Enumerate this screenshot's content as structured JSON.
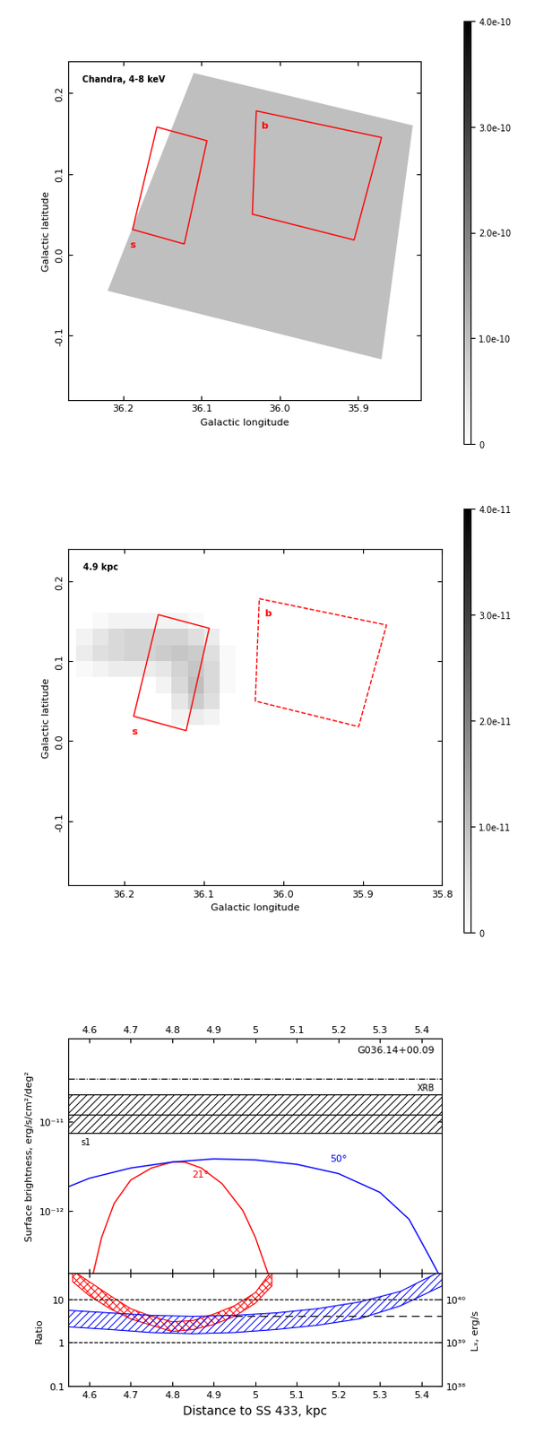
{
  "chart_data": [
    {
      "type": "image",
      "annotation": "Chandra, 4-8 keV",
      "xlabel": "Galactic longitude",
      "ylabel": "Galactic latitude",
      "xlim": [
        36.27,
        35.82
      ],
      "ylim": [
        -0.18,
        0.24
      ],
      "xticks": [
        36.2,
        36.1,
        {
          "value": 36.0,
          "label": "36.0"
        },
        35.9
      ],
      "yticks": [
        -0.1,
        {
          "value": 0,
          "label": "0.0"
        },
        0.1,
        0.2
      ],
      "footprint": {
        "corners": [
          [
            36.11,
            0.225
          ],
          [
            35.83,
            0.16
          ],
          [
            35.87,
            -0.13
          ],
          [
            36.22,
            -0.045
          ]
        ],
        "value": 1e-10
      },
      "regions": [
        {
          "name": "s",
          "color": "red",
          "line_style": "solid",
          "corners": [
            [
              36.157,
              0.158
            ],
            [
              36.093,
              0.141
            ],
            [
              36.122,
              0.013
            ],
            [
              36.188,
              0.031
            ]
          ]
        },
        {
          "name": "b",
          "color": "red",
          "line_style": "solid",
          "corners": [
            [
              36.03,
              0.178
            ],
            [
              35.87,
              0.145
            ],
            [
              35.905,
              0.018
            ],
            [
              36.035,
              0.05
            ]
          ]
        }
      ],
      "colorbar": {
        "range": [
          0,
          4e-10
        ],
        "ticks": [
          0,
          {
            "value": 1e-10,
            "label": "1.0e-10"
          },
          {
            "value": 2e-10,
            "label": "2.0e-10"
          },
          {
            "value": 3e-10,
            "label": "3.0e-10"
          },
          {
            "value": 4e-10,
            "label": "4.0e-10"
          }
        ]
      }
    },
    {
      "type": "image",
      "annotation": "4.9 kpc",
      "xlabel": "Galactic longitude",
      "ylabel": "Galactic latitude",
      "xlim": [
        36.27,
        35.8
      ],
      "ylim": [
        -0.18,
        0.24
      ],
      "xticks": [
        36.2,
        36.1,
        {
          "value": 36.0,
          "label": "36.0"
        },
        35.9,
        35.8
      ],
      "yticks": [
        -0.1,
        {
          "value": 0,
          "label": "0.0"
        },
        0.1,
        0.2
      ],
      "cells": {
        "x_edges": [
          36.26,
          36.24,
          36.22,
          36.2,
          36.18,
          36.16,
          36.14,
          36.12,
          36.1,
          36.08,
          36.06
        ],
        "y_edges": [
          0.02,
          0.04,
          0.06,
          0.08,
          0.1,
          0.12,
          0.14,
          0.16
        ],
        "values": [
          [
            0,
            0,
            0,
            0,
            0,
            0,
            2e-12,
            3e-12,
            2e-12,
            0
          ],
          [
            0,
            0,
            0,
            0,
            0,
            0,
            4e-12,
            8e-12,
            5e-12,
            0
          ],
          [
            0,
            0,
            0,
            0,
            0,
            2e-12,
            6e-12,
            1e-11,
            6e-12,
            1e-12
          ],
          [
            1e-12,
            2e-12,
            3e-12,
            3e-12,
            3e-12,
            4e-12,
            7e-12,
            9e-12,
            6e-12,
            1e-12
          ],
          [
            3e-12,
            5e-12,
            6e-12,
            7e-12,
            7e-12,
            8e-12,
            9e-12,
            8e-12,
            5e-12,
            1e-12
          ],
          [
            2e-12,
            4e-12,
            6e-12,
            7e-12,
            7e-12,
            7e-12,
            7e-12,
            5e-12,
            3e-12,
            0
          ],
          [
            0,
            1e-12,
            2e-12,
            2e-12,
            2e-12,
            2e-12,
            2e-12,
            1e-12,
            0,
            0
          ]
        ]
      },
      "regions": [
        {
          "name": "s",
          "color": "red",
          "line_style": "solid",
          "corners": [
            [
              36.157,
              0.158
            ],
            [
              36.093,
              0.141
            ],
            [
              36.122,
              0.013
            ],
            [
              36.188,
              0.031
            ]
          ]
        },
        {
          "name": "b",
          "color": "red",
          "line_style": "dashed",
          "corners": [
            [
              36.03,
              0.178
            ],
            [
              35.87,
              0.145
            ],
            [
              35.905,
              0.018
            ],
            [
              36.035,
              0.05
            ]
          ]
        }
      ],
      "colorbar": {
        "range": [
          0,
          4e-11
        ],
        "ticks": [
          0,
          {
            "value": 1e-11,
            "label": "1.0e-11"
          },
          {
            "value": 2e-11,
            "label": "2.0e-11"
          },
          {
            "value": 3e-11,
            "label": "3.0e-11"
          },
          {
            "value": 4e-11,
            "label": "4.0e-11"
          }
        ]
      }
    },
    {
      "type": "line",
      "annotation": "G036.14+00.09",
      "log": "y",
      "ylabel": "Surface brightness, erg/s/cm²/deg²",
      "xlim": [
        4.55,
        5.45
      ],
      "xticks": [
        4.6,
        4.7,
        4.8,
        4.9,
        5,
        5.1,
        5.2,
        5.3,
        5.4
      ],
      "ylim": [
        2e-13,
        8.5e-11
      ],
      "yticks": [
        {
          "value": 1e-12,
          "label": "10⁻¹²"
        },
        {
          "value": 1e-11,
          "label": "10⁻¹¹"
        }
      ],
      "reference_line": {
        "name": "XRB",
        "value": 3e-11,
        "line_style": "dashdot",
        "color": "black"
      },
      "band": {
        "name": "s1",
        "lower": 7.5e-12,
        "upper": 2e-11,
        "center": 1.2e-11,
        "color": "black"
      },
      "series": [
        {
          "name": "21°",
          "color": "red",
          "x": [
            4.61,
            4.63,
            4.66,
            4.7,
            4.75,
            4.8,
            4.83,
            4.87,
            4.92,
            4.97,
            5.0,
            5.03
          ],
          "values": [
            2e-13,
            5e-13,
            1.2e-12,
            2.2e-12,
            3e-12,
            3.5e-12,
            3.5e-12,
            3e-12,
            2e-12,
            1e-12,
            5e-13,
            2e-13
          ]
        },
        {
          "name": "50°",
          "color": "blue",
          "x": [
            4.55,
            4.6,
            4.7,
            4.8,
            4.9,
            5.0,
            5.1,
            5.2,
            5.3,
            5.37,
            5.42,
            5.44
          ],
          "values": [
            1.85e-12,
            2.3e-12,
            3e-12,
            3.5e-12,
            3.8e-12,
            3.7e-12,
            3.3e-12,
            2.6e-12,
            1.6e-12,
            8e-13,
            3e-13,
            2e-13
          ]
        }
      ]
    },
    {
      "type": "area",
      "log": "y",
      "xlabel": "Distance to SS 433, kpc",
      "ylabel": "Ratio",
      "y2label": "Lₓ, erg/s",
      "xlim": [
        4.55,
        5.45
      ],
      "xticks": [
        4.6,
        4.7,
        4.8,
        4.9,
        5,
        5.1,
        5.2,
        5.3,
        5.4
      ],
      "ylim": [
        0.1,
        40
      ],
      "yticks": [
        0.1,
        1,
        10
      ],
      "y2lim": [
        1e+38,
        4e+40
      ],
      "y2ticks": [
        {
          "value": 1e+38,
          "label": "10³⁸"
        },
        {
          "value": 1e+39,
          "label": "10³⁹"
        },
        {
          "value": 1e+40,
          "label": "10⁴⁰"
        }
      ],
      "reference_lines": [
        {
          "value": 1,
          "line_style": "dashed"
        },
        {
          "value": 10,
          "line_style": "dashed"
        },
        {
          "value": 4,
          "line_style": "dashed",
          "xrange": [
            4.95,
            5.45
          ]
        }
      ],
      "series": [
        {
          "color": "red",
          "marker": "cross",
          "x": [
            4.56,
            4.6,
            4.65,
            4.7,
            4.75,
            4.8,
            4.85,
            4.9,
            4.95,
            5.0,
            5.04
          ],
          "lower": [
            25,
            12,
            6,
            3.5,
            2.5,
            1.8,
            2.0,
            2.6,
            4,
            8,
            20
          ],
          "upper": [
            45,
            25,
            12,
            6,
            4,
            3,
            3.2,
            4.5,
            7,
            14,
            45
          ]
        },
        {
          "color": "blue",
          "marker": "diagonal",
          "x": [
            4.55,
            4.65,
            4.75,
            4.85,
            4.95,
            5.05,
            5.15,
            5.25,
            5.35,
            5.45
          ],
          "lower": [
            2.3,
            2.0,
            1.7,
            1.6,
            1.7,
            2.0,
            2.5,
            3.5,
            7,
            20
          ],
          "upper": [
            5.5,
            4.8,
            4.2,
            4.0,
            4.2,
            4.8,
            6,
            8.5,
            15,
            45
          ]
        }
      ]
    }
  ]
}
